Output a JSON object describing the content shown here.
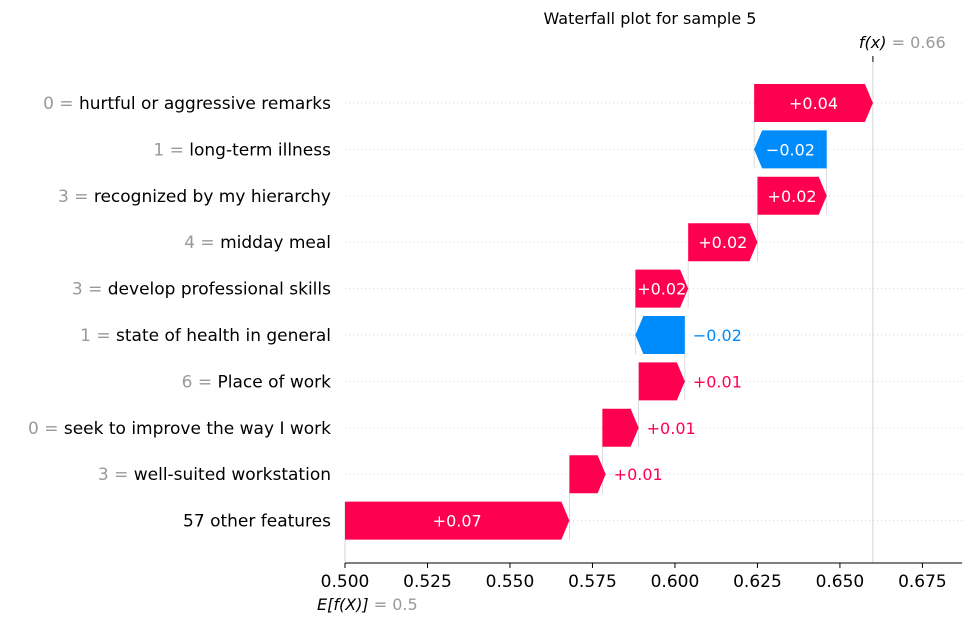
{
  "chart_data": {
    "type": "waterfall",
    "title": "Waterfall plot for sample 5",
    "fx_label": "f(x)",
    "fx_value": "0.66",
    "ex_label": "E[f(X)]",
    "ex_value": "0.5",
    "base_value": 0.5,
    "final_value": 0.66,
    "xlim": [
      0.5,
      0.687
    ],
    "xticks": [
      "0.500",
      "0.525",
      "0.550",
      "0.575",
      "0.600",
      "0.625",
      "0.650",
      "0.675"
    ],
    "xtick_values": [
      0.5,
      0.525,
      0.55,
      0.575,
      0.6,
      0.625,
      0.65,
      0.675
    ],
    "features": [
      {
        "value": "0",
        "name": "hurtful or aggressive remarks",
        "contribution": 0.036,
        "label": "+0.04",
        "start": 0.624
      },
      {
        "value": "1",
        "name": "long-term illness",
        "contribution": -0.022,
        "label": "−0.02",
        "start": 0.646
      },
      {
        "value": "3",
        "name": "recognized by my hierarchy",
        "contribution": 0.021,
        "label": "+0.02",
        "start": 0.625
      },
      {
        "value": "4",
        "name": "midday meal",
        "contribution": 0.021,
        "label": "+0.02",
        "start": 0.604
      },
      {
        "value": "3",
        "name": "develop professional skills",
        "contribution": 0.016,
        "label": "+0.02",
        "start": 0.588
      },
      {
        "value": "1",
        "name": "state of health in general",
        "contribution": -0.015,
        "label": "−0.02",
        "start": 0.603
      },
      {
        "value": "6",
        "name": "Place of work",
        "contribution": 0.014,
        "label": "+0.01",
        "start": 0.589
      },
      {
        "value": "0",
        "name": "seek to improve the way I work",
        "contribution": 0.011,
        "label": "+0.01",
        "start": 0.578
      },
      {
        "value": "3",
        "name": "well-suited workstation",
        "contribution": 0.011,
        "label": "+0.01",
        "start": 0.568
      },
      {
        "value": "",
        "name": "57 other features",
        "contribution": 0.068,
        "label": "+0.07",
        "start": 0.5
      }
    ],
    "colors": {
      "positive": "#ff0051",
      "negative": "#008bfb",
      "muted": "#999999",
      "text": "#000000",
      "grid": "#cccccc"
    }
  }
}
